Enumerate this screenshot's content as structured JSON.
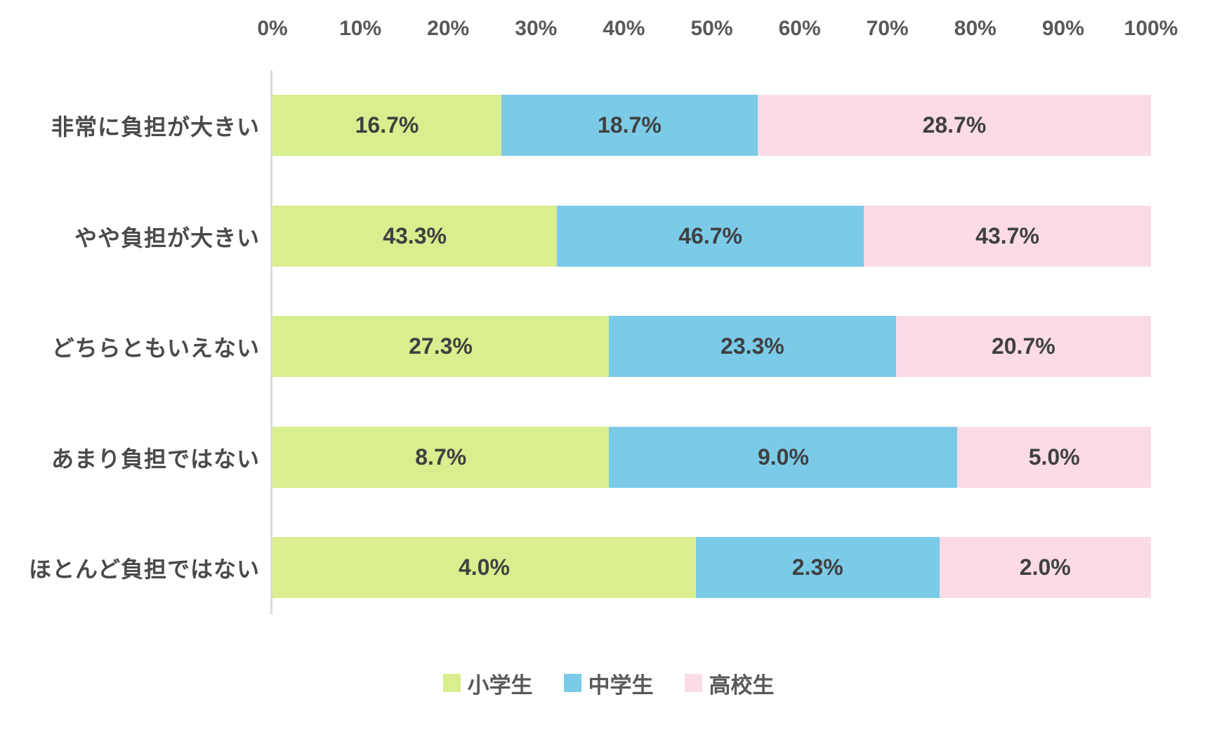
{
  "chart_data": {
    "type": "bar",
    "orientation": "horizontal",
    "stacked": true,
    "normalized_to_100_percent_width": true,
    "title": "",
    "categories": [
      "非常に負担が大きい",
      "やや負担が大きい",
      "どちらともいえない",
      "あまり負担ではない",
      "ほとんど負担ではない"
    ],
    "series": [
      {
        "name": "小学生",
        "color": "#d9ee8e",
        "values": [
          16.7,
          43.3,
          27.3,
          8.7,
          4.0
        ],
        "labels": [
          "16.7%",
          "43.3%",
          "27.3%",
          "8.7%",
          "4.0%"
        ]
      },
      {
        "name": "中学生",
        "color": "#7bcbe8",
        "values": [
          18.7,
          46.7,
          23.3,
          9.0,
          2.3
        ],
        "labels": [
          "18.7%",
          "46.7%",
          "23.3%",
          "9.0%",
          "2.3%"
        ]
      },
      {
        "name": "高校生",
        "color": "#fadbe7",
        "values": [
          28.7,
          43.7,
          20.7,
          5.0,
          2.0
        ],
        "labels": [
          "28.7%",
          "43.7%",
          "20.7%",
          "5.0%",
          "2.0%"
        ]
      }
    ],
    "x_axis": {
      "range": [
        0,
        100
      ],
      "ticks": [
        "0%",
        "10%",
        "20%",
        "30%",
        "40%",
        "50%",
        "60%",
        "70%",
        "80%",
        "90%",
        "100%"
      ],
      "position": "top"
    },
    "legend_position": "bottom",
    "grid": false,
    "colors": {
      "tick_text": "#595959",
      "category_text": "#4a4a4a",
      "value_text": "#404040",
      "legend_text": "#595959",
      "axis_line": "#dcdcdc",
      "background": "#ffffff"
    }
  }
}
